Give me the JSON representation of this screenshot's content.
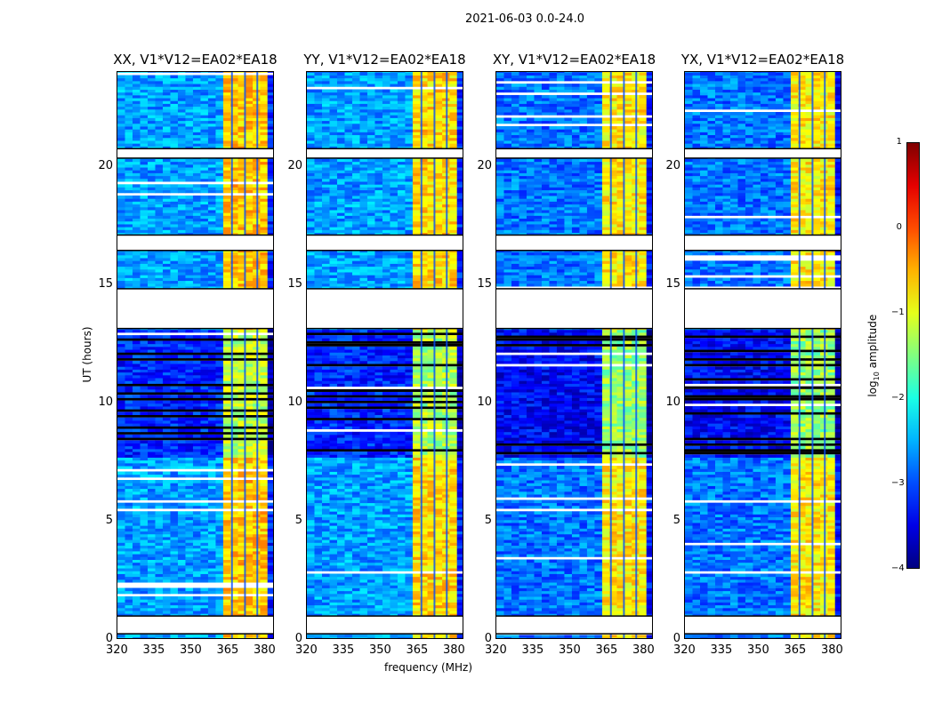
{
  "chart_data": {
    "type": "heatmap",
    "suptitle": "2021-06-03 0.0-24.0",
    "xlabel": "frequency (MHz)",
    "ylabel": "UT (hours)",
    "xlim": [
      320,
      384
    ],
    "ylim": [
      0,
      24
    ],
    "xticks": [
      320,
      335,
      350,
      365,
      380
    ],
    "yticks": [
      0,
      5,
      10,
      15,
      20
    ],
    "colorbar": {
      "label": "log10 amplitude",
      "label_main": "log",
      "label_sub": "10",
      "label_rest": " amplitude",
      "range": [
        -4,
        1
      ],
      "ticks": [
        1,
        0,
        -1,
        -2,
        -3,
        -4
      ],
      "colormap": "jet"
    },
    "time_blocks": [
      {
        "start": 0.0,
        "end": 0.25,
        "state": "data"
      },
      {
        "start": 0.25,
        "end": 1.0,
        "state": "flagged"
      },
      {
        "start": 1.0,
        "end": 13.15,
        "state": "data"
      },
      {
        "start": 13.15,
        "end": 14.83,
        "state": "flagged"
      },
      {
        "start": 14.83,
        "end": 16.45,
        "state": "data"
      },
      {
        "start": 16.45,
        "end": 17.1,
        "state": "flagged"
      },
      {
        "start": 17.1,
        "end": 20.35,
        "state": "data"
      },
      {
        "start": 20.35,
        "end": 20.75,
        "state": "flagged"
      },
      {
        "start": 20.75,
        "end": 24.0,
        "state": "data"
      }
    ],
    "noisy_interval": [
      7.7,
      13.1
    ],
    "dark_channels_mhz": [
      366.2,
      371.5,
      376.5
    ],
    "panels": [
      {
        "title": "XX, V1*V12=EA02*EA18",
        "bands": [
          {
            "f0": 320,
            "f1": 363,
            "level": -2.6
          },
          {
            "f0": 363,
            "f1": 381,
            "level": -0.6
          },
          {
            "f0": 381,
            "f1": 384,
            "level": -3.2
          }
        ]
      },
      {
        "title": "YY, V1*V12=EA02*EA18",
        "bands": [
          {
            "f0": 320,
            "f1": 363,
            "level": -2.6
          },
          {
            "f0": 363,
            "f1": 381,
            "level": -0.7
          },
          {
            "f0": 381,
            "f1": 384,
            "level": -3.2
          }
        ]
      },
      {
        "title": "XY, V1*V12=EA02*EA18",
        "bands": [
          {
            "f0": 320,
            "f1": 363,
            "level": -2.8
          },
          {
            "f0": 363,
            "f1": 381,
            "level": -0.8
          },
          {
            "f0": 381,
            "f1": 384,
            "level": -3.3
          }
        ]
      },
      {
        "title": "YX, V1*V12=EA02*EA18",
        "bands": [
          {
            "f0": 320,
            "f1": 363,
            "level": -2.8
          },
          {
            "f0": 363,
            "f1": 381,
            "level": -0.8
          },
          {
            "f0": 381,
            "f1": 384,
            "level": -3.3
          }
        ]
      }
    ]
  }
}
